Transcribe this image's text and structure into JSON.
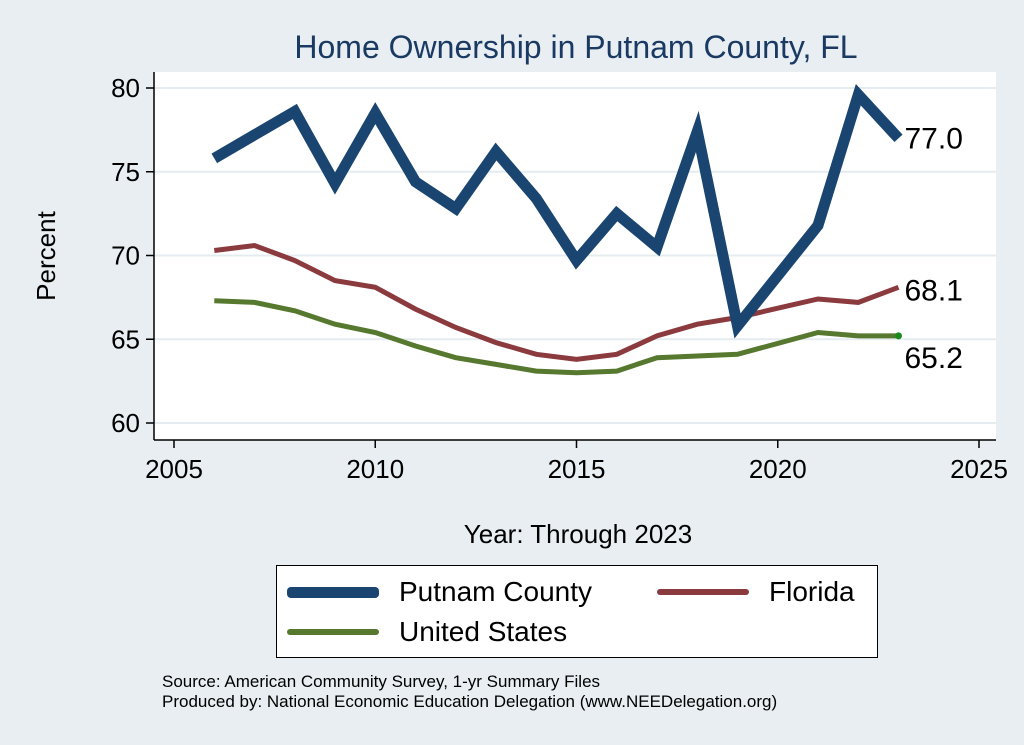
{
  "chart_data": {
    "type": "line",
    "title": "Home Ownership in Putnam County, FL",
    "xlabel": "Year: Through 2023",
    "ylabel": "Percent",
    "xlim": [
      2005,
      2025
    ],
    "ylim": [
      60,
      80
    ],
    "xticks": [
      2005,
      2010,
      2015,
      2020,
      2025
    ],
    "yticks": [
      60,
      65,
      70,
      75,
      80
    ],
    "grid": true,
    "legend_position": "bottom",
    "series": [
      {
        "name": "Putnam County",
        "color": "#1a4570",
        "x": [
          2006,
          2007,
          2008,
          2009,
          2010,
          2011,
          2012,
          2013,
          2014,
          2015,
          2016,
          2017,
          2018,
          2019,
          2021,
          2022,
          2023
        ],
        "values": [
          75.8,
          77.2,
          78.6,
          74.3,
          78.5,
          74.4,
          72.8,
          76.2,
          73.4,
          69.7,
          72.5,
          70.5,
          77.4,
          65.8,
          71.8,
          79.6,
          77.0
        ],
        "end_label": "77.0"
      },
      {
        "name": "Florida",
        "color": "#8b3a3e",
        "x": [
          2006,
          2007,
          2008,
          2009,
          2010,
          2011,
          2012,
          2013,
          2014,
          2015,
          2016,
          2017,
          2018,
          2019,
          2021,
          2022,
          2023
        ],
        "values": [
          70.3,
          70.6,
          69.7,
          68.5,
          68.1,
          66.8,
          65.7,
          64.8,
          64.1,
          63.8,
          64.1,
          65.2,
          65.9,
          66.3,
          67.4,
          67.2,
          68.1
        ],
        "end_label": "68.1"
      },
      {
        "name": "United States",
        "color": "#56782f",
        "x": [
          2006,
          2007,
          2008,
          2009,
          2010,
          2011,
          2012,
          2013,
          2014,
          2015,
          2016,
          2017,
          2018,
          2019,
          2021,
          2022,
          2023
        ],
        "values": [
          67.3,
          67.2,
          66.7,
          65.9,
          65.4,
          64.6,
          63.9,
          63.5,
          63.1,
          63.0,
          63.1,
          63.9,
          64.0,
          64.1,
          65.4,
          65.2,
          65.2
        ],
        "end_label": "65.2"
      }
    ]
  },
  "notes": {
    "source": "Source: American Community Survey, 1-yr Summary Files",
    "produced_by": "Produced by: National Economic Education Delegation (www.NEEDelegation.org)"
  }
}
